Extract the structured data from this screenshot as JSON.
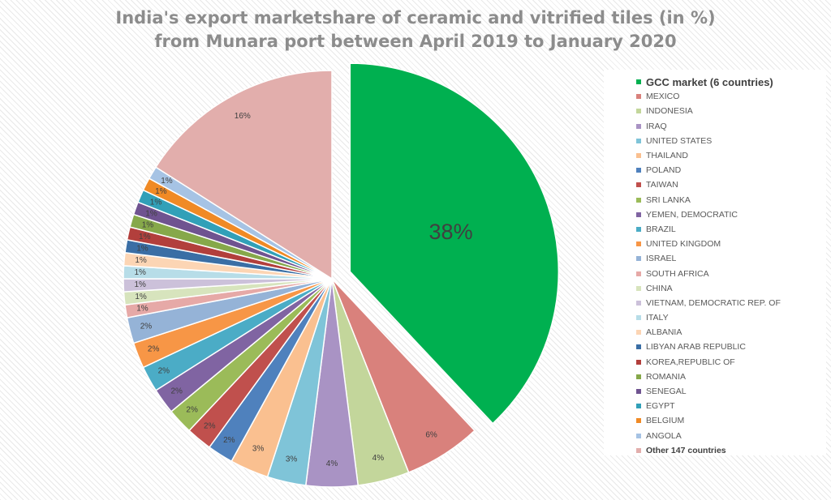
{
  "chart_data": {
    "type": "pie",
    "title_line1": "India's export marketshare of ceramic and vitrified tiles (in %)",
    "title_line2": "from Munara port between April 2019 to January 2020",
    "legend_position": "right",
    "slices": [
      {
        "label": "GCC market (6 countries)",
        "value": 38,
        "display": "38%",
        "color": "#00b050",
        "exploded": true,
        "bold": true,
        "big": true
      },
      {
        "label": "MEXICO",
        "value": 6,
        "display": "6%",
        "color": "#d9817c"
      },
      {
        "label": "INDONESIA",
        "value": 4,
        "display": "4%",
        "color": "#c3d69b"
      },
      {
        "label": "IRAQ",
        "value": 4,
        "display": "4%",
        "color": "#a993c4"
      },
      {
        "label": "UNITED STATES",
        "value": 3,
        "display": "3%",
        "color": "#7fc4d8"
      },
      {
        "label": "THAILAND",
        "value": 3,
        "display": "3%",
        "color": "#fac090"
      },
      {
        "label": "POLAND",
        "value": 2,
        "display": "2%",
        "color": "#4f81bd"
      },
      {
        "label": "TAIWAN",
        "value": 2,
        "display": "2%",
        "color": "#c0504d"
      },
      {
        "label": "SRI LANKA",
        "value": 2,
        "display": "2%",
        "color": "#9bbb59"
      },
      {
        "label": "YEMEN, DEMOCRATIC",
        "value": 2,
        "display": "2%",
        "color": "#8064a2"
      },
      {
        "label": "BRAZIL",
        "value": 2,
        "display": "2%",
        "color": "#4bacc6"
      },
      {
        "label": "UNITED KINGDOM",
        "value": 2,
        "display": "2%",
        "color": "#f79646"
      },
      {
        "label": "ISRAEL",
        "value": 2,
        "display": "2%",
        "color": "#95b3d7"
      },
      {
        "label": "SOUTH AFRICA",
        "value": 1,
        "display": "1%",
        "color": "#e6a9a7"
      },
      {
        "label": "CHINA",
        "value": 1,
        "display": "1%",
        "color": "#d7e4bd"
      },
      {
        "label": "VIETNAM, DEMOCRATIC REP. OF",
        "value": 1,
        "display": "1%",
        "color": "#ccc1da"
      },
      {
        "label": "ITALY",
        "value": 1,
        "display": "1%",
        "color": "#b7dde8"
      },
      {
        "label": "ALBANIA",
        "value": 1,
        "display": "1%",
        "color": "#fcd5b4"
      },
      {
        "label": "LIBYAN ARAB REPUBLIC",
        "value": 1,
        "display": "1%",
        "color": "#3a6ea5"
      },
      {
        "label": "KOREA,REPUBLIC OF",
        "value": 1,
        "display": "1%",
        "color": "#b23f3c"
      },
      {
        "label": "ROMANIA",
        "value": 1,
        "display": "1%",
        "color": "#86a84a"
      },
      {
        "label": "SENEGAL",
        "value": 1,
        "display": "1%",
        "color": "#6f5390"
      },
      {
        "label": "EGYPT",
        "value": 1,
        "display": "1%",
        "color": "#31a0b8"
      },
      {
        "label": "BELGIUM",
        "value": 1,
        "display": "1%",
        "color": "#f08a25"
      },
      {
        "label": "ANGOLA",
        "value": 1,
        "display": "1%",
        "color": "#a6c3e4"
      },
      {
        "label": "Other 147 countries",
        "value": 16,
        "display": "16%",
        "color": "#e2aeac",
        "bold": true
      }
    ]
  }
}
